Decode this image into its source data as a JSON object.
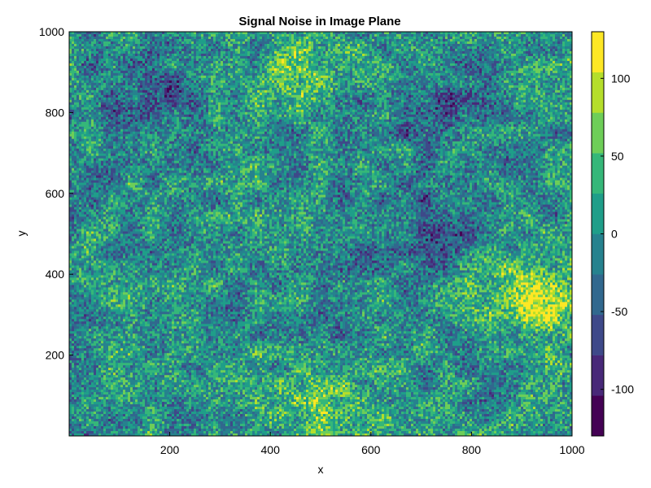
{
  "chart_data": {
    "type": "heatmap",
    "title": "Signal Noise in Image Plane",
    "xlabel": "x",
    "ylabel": "y",
    "xlim": [
      0,
      1000
    ],
    "ylim": [
      0,
      1000
    ],
    "x_ticks": [
      200,
      400,
      600,
      800,
      1000
    ],
    "y_ticks": [
      200,
      400,
      600,
      800,
      1000
    ],
    "x_tick_labels": [
      "200",
      "400",
      "600",
      "800",
      "1000"
    ],
    "y_tick_labels": [
      "200",
      "400",
      "600",
      "800",
      "1000"
    ],
    "grid": false,
    "colorbar": {
      "colormap": "viridis",
      "levels": 10,
      "range": [
        -130,
        130
      ],
      "ticks": [
        -100,
        -50,
        0,
        50,
        100
      ],
      "tick_labels": [
        "-100",
        "-50",
        "0",
        "50",
        "100"
      ],
      "colors": [
        "#440154",
        "#482878",
        "#3e4989",
        "#31688e",
        "#26828e",
        "#1f9e89",
        "#35b779",
        "#6ece58",
        "#b5de2b",
        "#fde725"
      ]
    },
    "description_values": {
      "distribution": "spatially correlated noise, mostly near 0",
      "high_regions_approx": [
        [
          900,
          350
        ],
        [
          520,
          60
        ],
        [
          480,
          900
        ],
        [
          940,
          330
        ]
      ],
      "low_regions_approx": [
        [
          720,
          500
        ],
        [
          140,
          830
        ],
        [
          720,
          820
        ]
      ]
    }
  }
}
